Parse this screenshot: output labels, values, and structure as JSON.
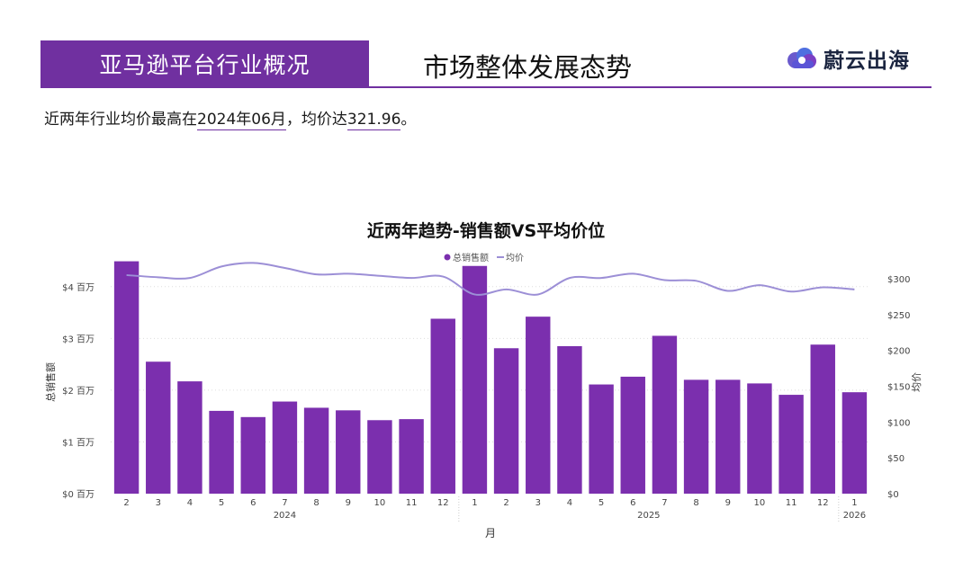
{
  "header": {
    "section": "亚马逊平台行业概况",
    "title": "市场整体发展态势",
    "brand_name": "蔚云出海"
  },
  "summary": {
    "prefix": "近两年行业均价最高在",
    "peak_month": "2024年06月",
    "middle": "，均价达",
    "peak_value": "321.96",
    "suffix": "。"
  },
  "colors": {
    "accent": "#7030a0",
    "bar": "#7b2fae",
    "line": "#9c8fd6"
  },
  "chart_data": {
    "type": "bar",
    "title": "近两年趋势-销售额VS平均价位",
    "xlabel": "月",
    "ylabel_left": "总销售额",
    "ylabel_right": "均价",
    "legend": [
      "总销售额",
      "均价"
    ],
    "legend_position": "top-center",
    "categories": [
      "2",
      "3",
      "4",
      "5",
      "6",
      "7",
      "8",
      "9",
      "10",
      "11",
      "12",
      "1",
      "2",
      "3",
      "4",
      "5",
      "6",
      "7",
      "8",
      "9",
      "10",
      "11",
      "12",
      "1"
    ],
    "year_groups": [
      {
        "label": "2024",
        "count": 11
      },
      {
        "label": "2025",
        "count": 12
      },
      {
        "label": "2026",
        "count": 1
      }
    ],
    "y_left": {
      "ticks": [
        0,
        1,
        2,
        3,
        4
      ],
      "tick_labels": [
        "$0 百万",
        "$1 百万",
        "$2 百万",
        "$3 百万",
        "$4 百万"
      ],
      "lim": [
        0,
        4.5
      ]
    },
    "y_right": {
      "ticks": [
        0,
        50,
        100,
        150,
        200,
        250,
        300
      ],
      "tick_labels": [
        "$0",
        "$50",
        "$100",
        "$150",
        "$200",
        "$250",
        "$300"
      ],
      "lim": [
        0,
        325
      ]
    },
    "series": [
      {
        "name": "总销售额",
        "type": "bar",
        "axis": "left",
        "values": [
          4.49,
          2.55,
          2.17,
          1.6,
          1.48,
          1.78,
          1.66,
          1.61,
          1.42,
          1.44,
          3.38,
          4.4,
          2.81,
          3.42,
          2.85,
          2.11,
          2.26,
          3.05,
          2.2,
          2.2,
          2.13,
          1.91,
          2.88,
          1.96
        ]
      },
      {
        "name": "均价",
        "type": "line",
        "axis": "right",
        "values": [
          305,
          302,
          301,
          317,
          322,
          315,
          306,
          307,
          304,
          301,
          303,
          278,
          285,
          278,
          301,
          301,
          307,
          298,
          297,
          283,
          291,
          282,
          288,
          285
        ]
      }
    ],
    "grid": true
  }
}
